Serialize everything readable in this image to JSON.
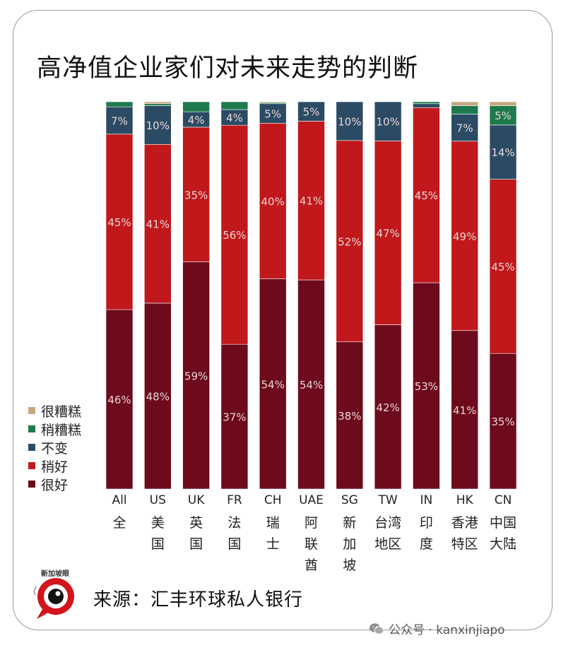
{
  "title": "高净值企业家们对未来走势的判断",
  "legend": {
    "items": [
      {
        "label": "很糟糕",
        "color": "#c8a77f"
      },
      {
        "label": "稍糟糕",
        "color": "#1e7a4d"
      },
      {
        "label": "不变",
        "color": "#2b4b65"
      },
      {
        "label": "稍好",
        "color": "#c0181b"
      },
      {
        "label": "很好",
        "color": "#6d0a1b"
      }
    ]
  },
  "categories": [
    {
      "code": "All",
      "name": [
        "全"
      ]
    },
    {
      "code": "US",
      "name": [
        "美",
        "国"
      ]
    },
    {
      "code": "UK",
      "name": [
        "英",
        "国"
      ]
    },
    {
      "code": "FR",
      "name": [
        "法",
        "国"
      ]
    },
    {
      "code": "CH",
      "name": [
        "瑞",
        "士"
      ]
    },
    {
      "code": "UAE",
      "name": [
        "阿",
        "联",
        "酋"
      ]
    },
    {
      "code": "SG",
      "name": [
        "新",
        "加",
        "坡"
      ]
    },
    {
      "code": "TW",
      "name": [
        "台湾",
        "地区"
      ]
    },
    {
      "code": "IN",
      "name": [
        "印",
        "度"
      ]
    },
    {
      "code": "HK",
      "name": [
        "香港",
        "特区"
      ]
    },
    {
      "code": "CN",
      "name": [
        "中国",
        "大陆"
      ]
    }
  ],
  "chart_data": {
    "type": "bar",
    "stacked": true,
    "percent": true,
    "title": "高净值企业家们对未来走势的判断",
    "categories": [
      "All",
      "US",
      "UK",
      "FR",
      "CH",
      "UAE",
      "SG",
      "TW",
      "IN",
      "HK",
      "CN"
    ],
    "series": [
      {
        "name": "很好",
        "color": "#6d0a1b",
        "values": [
          46,
          48,
          59,
          37,
          54,
          54,
          38,
          42,
          53,
          41,
          35
        ]
      },
      {
        "name": "稍好",
        "color": "#c0181b",
        "values": [
          45,
          41,
          35,
          56,
          40,
          41,
          52,
          47,
          45,
          49,
          45
        ]
      },
      {
        "name": "不变",
        "color": "#2b4b65",
        "values": [
          7,
          10,
          4,
          4,
          5,
          5,
          10,
          10,
          1,
          7,
          14
        ]
      },
      {
        "name": "稍糟糕",
        "color": "#1e7a4d",
        "values": [
          1.3,
          0.5,
          2.6,
          2.0,
          0.3,
          0,
          0,
          0,
          0.5,
          2.2,
          5
        ]
      },
      {
        "name": "很糟糕",
        "color": "#c8a77f",
        "values": [
          0,
          0.5,
          0,
          0,
          0.2,
          0,
          0,
          0,
          0,
          1.0,
          1.0
        ]
      }
    ],
    "labels": {
      "很好": [
        "46%",
        "48%",
        "59%",
        "37%",
        "54%",
        "54%",
        "38%",
        "42%",
        "53%",
        "41%",
        "35%"
      ],
      "稍好": [
        "45%",
        "41%",
        "35%",
        "56%",
        "40%",
        "41%",
        "52%",
        "47%",
        "45%",
        "49%",
        "45%"
      ],
      "不变": [
        "7%",
        "10%",
        "4%",
        "4%",
        "5%",
        "5%",
        "10%",
        "10%",
        "",
        "7%",
        "14%"
      ],
      "稍糟糕": [
        "",
        "",
        "",
        "",
        "",
        "",
        "",
        "",
        "",
        "",
        "5%"
      ],
      "很糟糕": [
        "",
        "",
        "",
        "",
        "",
        "",
        "",
        "",
        "",
        "",
        ""
      ]
    },
    "ylim": [
      0,
      100
    ]
  },
  "source": "来源：汇丰环球私人银行",
  "logo_text": "新加坡眼",
  "watermark": "公众号 · kanxinjiapo"
}
